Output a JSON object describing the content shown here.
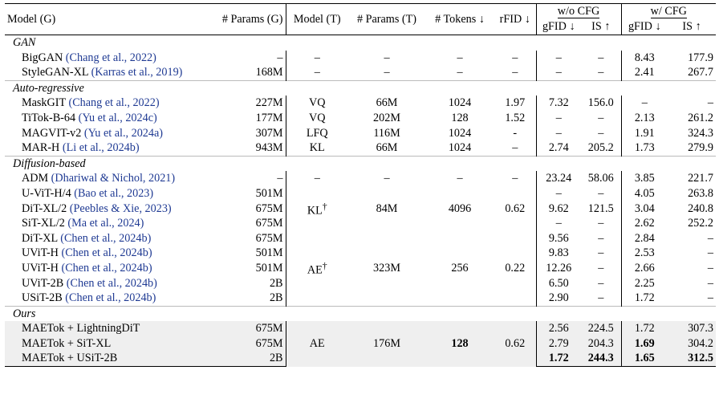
{
  "header": {
    "model_g": "Model (G)",
    "params_g": "# Params (G)",
    "model_t": "Model (T)",
    "params_t": "# Params (T)",
    "tokens": "# Tokens ↓",
    "rfid": "rFID ↓",
    "wo_cfg": "w/o CFG",
    "w_cfg": "w/ CFG",
    "gfid": "gFID ↓",
    "is": "IS ↑"
  },
  "groups": {
    "gan": "GAN",
    "ar": "Auto-regressive",
    "diff": "Diffusion-based",
    "ours": "Ours"
  },
  "rows": {
    "biggan": {
      "name": "BigGAN",
      "cite": "(Chang et al., 2022)",
      "pg": "–",
      "mt": "–",
      "pt": "–",
      "tok": "–",
      "rfid": "–",
      "g1": "–",
      "i1": "–",
      "g2": "8.43",
      "i2": "177.9"
    },
    "stylegan": {
      "name": "StyleGAN-XL",
      "cite": "(Karras et al., 2019)",
      "pg": "168M",
      "mt": "–",
      "pt": "–",
      "tok": "–",
      "rfid": "–",
      "g1": "–",
      "i1": "–",
      "g2": "2.41",
      "i2": "267.7"
    },
    "maskgit": {
      "name": "MaskGIT",
      "cite": "(Chang et al., 2022)",
      "pg": "227M",
      "mt": "VQ",
      "pt": "66M",
      "tok": "1024",
      "rfid": "1.97",
      "g1": "7.32",
      "i1": "156.0",
      "g2": "–",
      "i2": "–"
    },
    "titok": {
      "name": "TiTok-B-64",
      "cite": "(Yu et al., 2024c)",
      "pg": "177M",
      "mt": "VQ",
      "pt": "202M",
      "tok": "128",
      "rfid": "1.52",
      "g1": "–",
      "i1": "–",
      "g2": "2.13",
      "i2": "261.2"
    },
    "magvit": {
      "name": "MAGVIT-v2",
      "cite": "(Yu et al., 2024a)",
      "pg": "307M",
      "mt": "LFQ",
      "pt": "116M",
      "tok": "1024",
      "rfid": "-",
      "g1": "–",
      "i1": "–",
      "g2": "1.91",
      "i2": "324.3"
    },
    "marh": {
      "name": "MAR-H",
      "cite": "(Li et al., 2024b)",
      "pg": "943M",
      "mt": "KL",
      "pt": "66M",
      "tok": "1024",
      "rfid": "–",
      "g1": "2.74",
      "i1": "205.2",
      "g2": "1.73",
      "i2": "279.9"
    },
    "adm": {
      "name": "ADM",
      "cite": "(Dhariwal & Nichol, 2021)",
      "pg": "–",
      "mt": "–",
      "pt": "–",
      "tok": "–",
      "rfid": "–",
      "g1": "23.24",
      "i1": "58.06",
      "g2": "3.85",
      "i2": "221.7"
    },
    "uvith4": {
      "name": "U-ViT-H/4",
      "cite": "(Bao et al., 2023)",
      "pg": "501M",
      "g1": "–",
      "i1": "–",
      "g2": "4.05",
      "i2": "263.8"
    },
    "ditxl2": {
      "name": "DiT-XL/2",
      "cite": "(Peebles & Xie, 2023)",
      "pg": "675M",
      "mt": "KL",
      "mt_sup": "†",
      "pt": "84M",
      "tok": "4096",
      "rfid": "0.62",
      "g1": "9.62",
      "i1": "121.5",
      "g2": "3.04",
      "i2": "240.8"
    },
    "sitxl2": {
      "name": "SiT-XL/2",
      "cite": "(Ma et al., 2024)",
      "pg": "675M",
      "g1": "–",
      "i1": "–",
      "g2": "2.62",
      "i2": "252.2"
    },
    "ditxl": {
      "name": "DiT-XL",
      "cite": "(Chen et al., 2024b)",
      "pg": "675M",
      "g1": "9.56",
      "i1": "–",
      "g2": "2.84",
      "i2": "–"
    },
    "uvith_a": {
      "name": "UViT-H",
      "cite": "(Chen et al., 2024b)",
      "pg": "501M",
      "g1": "9.83",
      "i1": "–",
      "g2": "2.53",
      "i2": "–"
    },
    "uvith_b": {
      "name": "UViT-H",
      "cite": "(Chen et al., 2024b)",
      "pg": "501M",
      "mt": "AE",
      "mt_sup": "†",
      "pt": "323M",
      "tok": "256",
      "rfid": "0.22",
      "g1": "12.26",
      "i1": "–",
      "g2": "2.66",
      "i2": "–"
    },
    "uvit2b": {
      "name": "UViT-2B",
      "cite": "(Chen et al., 2024b)",
      "pg": "2B",
      "g1": "6.50",
      "i1": "–",
      "g2": "2.25",
      "i2": "–"
    },
    "usit2b": {
      "name": "USiT-2B",
      "cite": "(Chen et al., 2024b)",
      "pg": "2B",
      "g1": "2.90",
      "i1": "–",
      "g2": "1.72",
      "i2": "–"
    },
    "ours1": {
      "name": "MAETok + LightningDiT",
      "pg": "675M",
      "g1": "2.56",
      "i1": "224.5",
      "g2": "1.72",
      "i2": "307.3"
    },
    "ours2": {
      "name": "MAETok + SiT-XL",
      "pg": "675M",
      "mt": "AE",
      "pt": "176M",
      "tok": "128",
      "rfid": "0.62",
      "g1": "2.79",
      "i1": "204.3",
      "g2": "1.69",
      "i2": "304.2"
    },
    "ours3": {
      "name": "MAETok + USiT-2B",
      "pg": "2B",
      "g1": "1.72",
      "i1": "244.3",
      "g2": "1.65",
      "i2": "312.5"
    }
  }
}
